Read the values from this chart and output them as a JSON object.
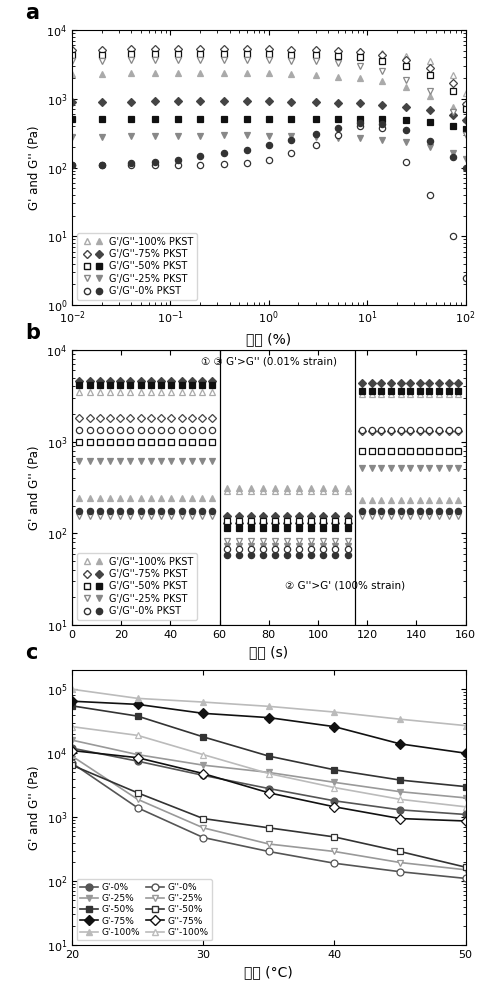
{
  "panel_a": {
    "xlabel": "应变 (%)",
    "ylabel": "G' and G'' (Pa)",
    "xlim": [
      0.01,
      100
    ],
    "ylim": [
      1,
      10000
    ],
    "series": {
      "G_prime_100": {
        "x": [
          0.01,
          0.02,
          0.04,
          0.07,
          0.12,
          0.2,
          0.35,
          0.6,
          1.0,
          1.7,
          3.0,
          5.0,
          8.5,
          14,
          25,
          43,
          75,
          100
        ],
        "y": [
          5000,
          5000,
          5100,
          5100,
          5100,
          5100,
          5100,
          5100,
          5100,
          5100,
          5000,
          5000,
          4900,
          4700,
          4200,
          3500,
          2200,
          1200
        ]
      },
      "G_pp_100": {
        "x": [
          0.01,
          0.02,
          0.04,
          0.07,
          0.12,
          0.2,
          0.35,
          0.6,
          1.0,
          1.7,
          3.0,
          5.0,
          8.5,
          14,
          25,
          43,
          75,
          100
        ],
        "y": [
          2300,
          2300,
          2400,
          2400,
          2400,
          2400,
          2400,
          2400,
          2400,
          2300,
          2200,
          2100,
          2000,
          1800,
          1500,
          1100,
          750,
          500
        ]
      },
      "G_prime_75": {
        "x": [
          0.01,
          0.02,
          0.04,
          0.07,
          0.12,
          0.2,
          0.35,
          0.6,
          1.0,
          1.7,
          3.0,
          5.0,
          8.5,
          14,
          25,
          43,
          75,
          100
        ],
        "y": [
          5200,
          5200,
          5300,
          5300,
          5300,
          5300,
          5300,
          5300,
          5300,
          5200,
          5100,
          5000,
          4800,
          4400,
          3700,
          2800,
          1700,
          850
        ]
      },
      "G_pp_75": {
        "x": [
          0.01,
          0.02,
          0.04,
          0.07,
          0.12,
          0.2,
          0.35,
          0.6,
          1.0,
          1.7,
          3.0,
          5.0,
          8.5,
          14,
          25,
          43,
          75,
          100
        ],
        "y": [
          900,
          900,
          900,
          920,
          920,
          920,
          930,
          930,
          920,
          910,
          900,
          880,
          860,
          820,
          760,
          680,
          580,
          490
        ]
      },
      "G_prime_50": {
        "x": [
          0.01,
          0.02,
          0.04,
          0.07,
          0.12,
          0.2,
          0.35,
          0.6,
          1.0,
          1.7,
          3.0,
          5.0,
          8.5,
          14,
          25,
          43,
          75,
          100
        ],
        "y": [
          4400,
          4400,
          4500,
          4500,
          4500,
          4500,
          4500,
          4500,
          4500,
          4400,
          4300,
          4200,
          4000,
          3600,
          3000,
          2200,
          1300,
          700
        ]
      },
      "G_pp_50": {
        "x": [
          0.01,
          0.02,
          0.04,
          0.07,
          0.12,
          0.2,
          0.35,
          0.6,
          1.0,
          1.7,
          3.0,
          5.0,
          8.5,
          14,
          25,
          43,
          75,
          100
        ],
        "y": [
          500,
          500,
          500,
          510,
          510,
          510,
          510,
          510,
          510,
          510,
          510,
          510,
          510,
          500,
          490,
          460,
          400,
          360
        ]
      },
      "G_prime_25": {
        "x": [
          0.01,
          0.02,
          0.04,
          0.07,
          0.12,
          0.2,
          0.35,
          0.6,
          1.0,
          1.7,
          3.0,
          5.0,
          8.5,
          14,
          25,
          43,
          75,
          100
        ],
        "y": [
          3600,
          3600,
          3700,
          3700,
          3700,
          3700,
          3700,
          3700,
          3700,
          3600,
          3500,
          3300,
          3000,
          2500,
          1900,
          1300,
          650,
          300
        ]
      },
      "G_pp_25": {
        "x": [
          0.01,
          0.02,
          0.04,
          0.07,
          0.12,
          0.2,
          0.35,
          0.6,
          1.0,
          1.7,
          3.0,
          5.0,
          8.5,
          14,
          25,
          43,
          75,
          100
        ],
        "y": [
          280,
          280,
          285,
          285,
          290,
          290,
          295,
          295,
          290,
          285,
          280,
          272,
          265,
          252,
          232,
          202,
          162,
          132
        ]
      },
      "G_prime_0": {
        "x": [
          0.01,
          0.02,
          0.04,
          0.07,
          0.12,
          0.2,
          0.35,
          0.6,
          1.0,
          1.7,
          3.0,
          5.0,
          8.5,
          14,
          25,
          43,
          75,
          100
        ],
        "y": [
          108,
          108,
          108,
          108,
          108,
          110,
          112,
          115,
          130,
          165,
          210,
          300,
          400,
          380,
          120,
          40,
          10,
          2.5
        ]
      },
      "G_pp_0": {
        "x": [
          0.01,
          0.02,
          0.04,
          0.07,
          0.12,
          0.2,
          0.35,
          0.6,
          1.0,
          1.7,
          3.0,
          5.0,
          8.5,
          14,
          25,
          43,
          75,
          100
        ],
        "y": [
          108,
          110,
          115,
          120,
          130,
          145,
          160,
          180,
          210,
          255,
          310,
          380,
          450,
          430,
          350,
          240,
          140,
          100
        ]
      }
    },
    "legend": [
      {
        "marker": "^",
        "color": "#aaaaaa",
        "label": "G'/G''-100% PKST"
      },
      {
        "marker": "D",
        "color": "#444444",
        "label": "G'/G''-75% PKST"
      },
      {
        "marker": "s",
        "color": "#111111",
        "label": "G'/G''-50% PKST"
      },
      {
        "marker": "v",
        "color": "#888888",
        "label": "G'/G''-25% PKST"
      },
      {
        "marker": "o",
        "color": "#333333",
        "label": "G'/G''-0% PKST"
      }
    ]
  },
  "panel_b": {
    "xlabel": "时间 (s)",
    "ylabel": "G' and G'' (Pa)",
    "xlim": [
      0,
      160
    ],
    "ylim": [
      10,
      10000
    ],
    "xticks": [
      0,
      20,
      40,
      60,
      80,
      100,
      120,
      140,
      160
    ],
    "annotation1": "① ③ G'>G'' (0.01% strain)",
    "annotation2": "② G''>G' (100% strain)",
    "phases": {
      "p1": {
        "xmin": 0,
        "xmax": 60
      },
      "p2": {
        "xmin": 60,
        "xmax": 115
      },
      "p3": {
        "xmin": 115,
        "xmax": 160
      }
    },
    "p1_data": {
      "G_prime_100": {
        "y": 3500,
        "marker": "^",
        "filled": false,
        "color": "#aaaaaa"
      },
      "G_pp_100": {
        "y": 240,
        "marker": "^",
        "filled": true,
        "color": "#aaaaaa"
      },
      "G_prime_75": {
        "y": 4600,
        "marker": "D",
        "filled": true,
        "color": "#444444"
      },
      "G_pp_75": {
        "y": 1800,
        "marker": "D",
        "filled": false,
        "color": "#444444"
      },
      "G_prime_50": {
        "y": 4100,
        "marker": "s",
        "filled": true,
        "color": "#111111"
      },
      "G_pp_50": {
        "y": 1000,
        "marker": "s",
        "filled": false,
        "color": "#111111"
      },
      "G_prime_25": {
        "y": 620,
        "marker": "v",
        "filled": true,
        "color": "#888888"
      },
      "G_pp_25": {
        "y": 155,
        "marker": "v",
        "filled": false,
        "color": "#888888"
      },
      "G_prime_0": {
        "y": 175,
        "marker": "o",
        "filled": true,
        "color": "#333333"
      },
      "G_pp_0": {
        "y": 1350,
        "marker": "o",
        "filled": false,
        "color": "#333333"
      }
    },
    "p2_data": {
      "G_prime_100": {
        "y": 290,
        "marker": "^",
        "filled": false,
        "color": "#aaaaaa"
      },
      "G_pp_100": {
        "y": 310,
        "marker": "^",
        "filled": true,
        "color": "#aaaaaa"
      },
      "G_prime_75": {
        "y": 155,
        "marker": "D",
        "filled": true,
        "color": "#444444"
      },
      "G_pp_75": {
        "y": 130,
        "marker": "D",
        "filled": false,
        "color": "#444444"
      },
      "G_prime_50": {
        "y": 115,
        "marker": "s",
        "filled": true,
        "color": "#111111"
      },
      "G_pp_50": {
        "y": 135,
        "marker": "s",
        "filled": false,
        "color": "#111111"
      },
      "G_prime_25": {
        "y": 72,
        "marker": "v",
        "filled": true,
        "color": "#888888"
      },
      "G_pp_25": {
        "y": 82,
        "marker": "v",
        "filled": false,
        "color": "#888888"
      },
      "G_prime_0": {
        "y": 58,
        "marker": "o",
        "filled": true,
        "color": "#333333"
      },
      "G_pp_0": {
        "y": 68,
        "marker": "o",
        "filled": false,
        "color": "#333333"
      }
    },
    "p3_data": {
      "G_prime_100": {
        "y": 3300,
        "marker": "^",
        "filled": false,
        "color": "#aaaaaa"
      },
      "G_pp_100": {
        "y": 230,
        "marker": "^",
        "filled": true,
        "color": "#aaaaaa"
      },
      "G_prime_75": {
        "y": 4400,
        "marker": "D",
        "filled": true,
        "color": "#444444"
      },
      "G_pp_75": {
        "y": 1300,
        "marker": "D",
        "filled": false,
        "color": "#444444"
      },
      "G_prime_50": {
        "y": 3600,
        "marker": "s",
        "filled": true,
        "color": "#111111"
      },
      "G_pp_50": {
        "y": 800,
        "marker": "s",
        "filled": false,
        "color": "#111111"
      },
      "G_prime_25": {
        "y": 520,
        "marker": "v",
        "filled": true,
        "color": "#888888"
      },
      "G_pp_25": {
        "y": 155,
        "marker": "v",
        "filled": false,
        "color": "#888888"
      },
      "G_prime_0": {
        "y": 175,
        "marker": "o",
        "filled": true,
        "color": "#333333"
      },
      "G_pp_0": {
        "y": 1350,
        "marker": "o",
        "filled": false,
        "color": "#333333"
      }
    },
    "legend": [
      {
        "marker": "^",
        "color": "#aaaaaa",
        "label": "G'/G''-100% PKST"
      },
      {
        "marker": "D",
        "color": "#444444",
        "label": "G'/G''-75% PKST"
      },
      {
        "marker": "s",
        "color": "#111111",
        "label": "G'/G''-50% PKST"
      },
      {
        "marker": "v",
        "color": "#888888",
        "label": "G'/G''-25% PKST"
      },
      {
        "marker": "o",
        "color": "#333333",
        "label": "G'/G''-0% PKST"
      }
    ]
  },
  "panel_c": {
    "xlabel": "温度 (°C)",
    "ylabel": "G' and G'' (Pa)",
    "xlim": [
      20,
      50
    ],
    "ylim": [
      10,
      200000
    ],
    "xticks": [
      20,
      30,
      40,
      50
    ],
    "G_prime": {
      "0%": {
        "x": [
          20,
          25,
          30,
          35,
          40,
          45,
          50
        ],
        "y": [
          12000,
          7500,
          4500,
          2800,
          1800,
          1300,
          1100
        ],
        "color": "#555555",
        "marker": "o"
      },
      "25%": {
        "x": [
          20,
          25,
          30,
          35,
          40,
          45,
          50
        ],
        "y": [
          16000,
          9500,
          6500,
          5000,
          3500,
          2500,
          2000
        ],
        "color": "#999999",
        "marker": "v"
      },
      "50%": {
        "x": [
          20,
          25,
          30,
          35,
          40,
          45,
          50
        ],
        "y": [
          55000,
          38000,
          18000,
          9000,
          5500,
          3800,
          3000
        ],
        "color": "#333333",
        "marker": "s"
      },
      "75%": {
        "x": [
          20,
          25,
          30,
          35,
          40,
          45,
          50
        ],
        "y": [
          65000,
          58000,
          42000,
          36000,
          26000,
          14000,
          10000
        ],
        "color": "#111111",
        "marker": "D"
      },
      "100%": {
        "x": [
          20,
          25,
          30,
          35,
          40,
          45,
          50
        ],
        "y": [
          100000,
          72000,
          63000,
          54000,
          44000,
          34000,
          27000
        ],
        "color": "#bbbbbb",
        "marker": "^"
      }
    },
    "G_pp": {
      "0%": {
        "x": [
          20,
          25,
          30,
          35,
          40,
          45,
          50
        ],
        "y": [
          7000,
          1400,
          480,
          290,
          190,
          140,
          110
        ],
        "color": "#555555",
        "marker": "o"
      },
      "25%": {
        "x": [
          20,
          25,
          30,
          35,
          40,
          45,
          50
        ],
        "y": [
          9000,
          1900,
          680,
          380,
          290,
          195,
          150
        ],
        "color": "#999999",
        "marker": "v"
      },
      "50%": {
        "x": [
          20,
          25,
          30,
          35,
          40,
          45,
          50
        ],
        "y": [
          6500,
          2400,
          950,
          680,
          490,
          290,
          165
        ],
        "color": "#333333",
        "marker": "s"
      },
      "75%": {
        "x": [
          20,
          25,
          30,
          35,
          40,
          45,
          50
        ],
        "y": [
          11000,
          8500,
          4800,
          2400,
          1450,
          950,
          870
        ],
        "color": "#111111",
        "marker": "D"
      },
      "100%": {
        "x": [
          20,
          25,
          30,
          35,
          40,
          45,
          50
        ],
        "y": [
          26000,
          19000,
          9500,
          4800,
          2900,
          1900,
          1450
        ],
        "color": "#bbbbbb",
        "marker": "^"
      }
    }
  }
}
